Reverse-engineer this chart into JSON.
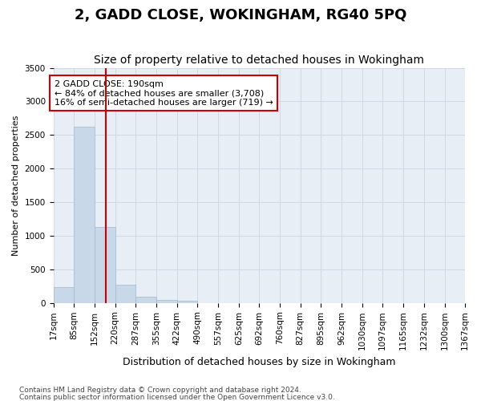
{
  "title": "2, GADD CLOSE, WOKINGHAM, RG40 5PQ",
  "subtitle": "Size of property relative to detached houses in Wokingham",
  "xlabel": "Distribution of detached houses by size in Wokingham",
  "ylabel": "Number of detached properties",
  "footnote1": "Contains HM Land Registry data © Crown copyright and database right 2024.",
  "footnote2": "Contains public sector information licensed under the Open Government Licence v3.0.",
  "bin_edges": [
    17,
    85,
    152,
    220,
    287,
    355,
    422,
    490,
    557,
    625,
    692,
    760,
    827,
    895,
    962,
    1030,
    1097,
    1165,
    1232,
    1300,
    1367
  ],
  "bin_edge_labels": [
    "17sqm",
    "85sqm",
    "152sqm",
    "220sqm",
    "287sqm",
    "355sqm",
    "422sqm",
    "490sqm",
    "557sqm",
    "625sqm",
    "692sqm",
    "760sqm",
    "827sqm",
    "895sqm",
    "962sqm",
    "1030sqm",
    "1097sqm",
    "1165sqm",
    "1232sqm",
    "1300sqm",
    "1367sqm"
  ],
  "bar_values": [
    230,
    2620,
    1130,
    265,
    95,
    50,
    30,
    0,
    0,
    0,
    0,
    0,
    0,
    0,
    0,
    0,
    0,
    0,
    0,
    0
  ],
  "bar_color": "#c8d8e8",
  "bar_edge_color": "#a0b8d0",
  "bg_color": "#e8eef5",
  "grid_color": "#d0d8e8",
  "vline_color": "#cc0000",
  "vline_x_index": 1.85,
  "annotation_text": "2 GADD CLOSE: 190sqm\n← 84% of detached houses are smaller (3,708)\n16% of semi-detached houses are larger (719) →",
  "annotation_box_facecolor": "#ffffff",
  "annotation_box_edgecolor": "#cc0000",
  "ylim": [
    0,
    3500
  ],
  "yticks": [
    0,
    500,
    1000,
    1500,
    2000,
    2500,
    3000,
    3500
  ],
  "title_fontsize": 13,
  "subtitle_fontsize": 10,
  "xlabel_fontsize": 9,
  "ylabel_fontsize": 8,
  "tick_fontsize": 7.5,
  "annotation_fontsize": 8
}
